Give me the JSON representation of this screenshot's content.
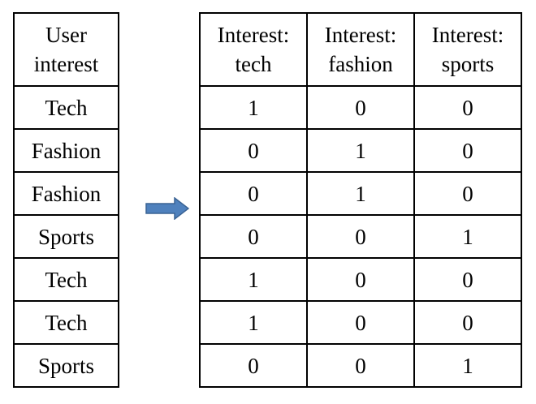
{
  "left_table": {
    "header": "User interest",
    "rows": [
      "Tech",
      "Fashion",
      "Fashion",
      "Sports",
      "Tech",
      "Tech",
      "Sports"
    ]
  },
  "right_table": {
    "headers": [
      "Interest: tech",
      "Interest: fashion",
      "Interest: sports"
    ],
    "rows": [
      [
        "1",
        "0",
        "0"
      ],
      [
        "0",
        "1",
        "0"
      ],
      [
        "0",
        "1",
        "0"
      ],
      [
        "0",
        "0",
        "1"
      ],
      [
        "1",
        "0",
        "0"
      ],
      [
        "1",
        "0",
        "0"
      ],
      [
        "0",
        "0",
        "1"
      ]
    ]
  },
  "arrow": {
    "icon": "right-arrow-icon",
    "color": "#4f81bd",
    "stroke": "#3a6394"
  }
}
